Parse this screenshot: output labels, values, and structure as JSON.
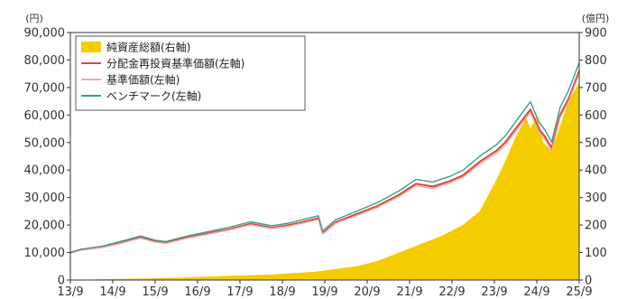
{
  "chart_data": {
    "type": "area",
    "left_axis": {
      "unit": "(円)",
      "min": 0,
      "max": 90000,
      "step": 10000,
      "ticks": [
        "0",
        "10,000",
        "20,000",
        "30,000",
        "40,000",
        "50,000",
        "60,000",
        "70,000",
        "80,000",
        "90,000"
      ]
    },
    "right_axis": {
      "unit": "(億円)",
      "min": 0,
      "max": 900,
      "step": 100,
      "ticks": [
        "0",
        "100",
        "200",
        "300",
        "400",
        "500",
        "600",
        "700",
        "800",
        "900"
      ]
    },
    "x_ticks": [
      "13/9",
      "14/9",
      "15/9",
      "16/9",
      "17/9",
      "18/9",
      "19/9",
      "20/9",
      "21/9",
      "22/9",
      "23/9",
      "24/9",
      "25/9"
    ],
    "x_range": [
      2013.75,
      2025.75
    ],
    "grid": false,
    "legend_position": "top-left",
    "series": [
      {
        "name": "純資産総額(右軸)",
        "axis": "right",
        "kind": "area",
        "color": "#f5cc00",
        "x": [
          2013.75,
          2014.5,
          2015.5,
          2016.5,
          2017.5,
          2018.5,
          2019.5,
          2020.5,
          2021.0,
          2021.5,
          2022.0,
          2022.5,
          2023.0,
          2023.4,
          2023.75,
          2024.0,
          2024.25,
          2024.5,
          2024.6,
          2024.75,
          2024.9,
          2025.1,
          2025.3,
          2025.5,
          2025.75
        ],
        "y": [
          0,
          3,
          6,
          10,
          15,
          20,
          30,
          50,
          70,
          100,
          130,
          160,
          200,
          250,
          350,
          430,
          520,
          590,
          550,
          600,
          500,
          470,
          560,
          650,
          720
        ]
      },
      {
        "name": "分配金再投資基準価額(左軸)",
        "axis": "left",
        "kind": "line",
        "color": "#d9483b",
        "x": [
          2013.75,
          2014.0,
          2014.5,
          2014.9,
          2015.4,
          2015.75,
          2016.0,
          2016.5,
          2017.0,
          2017.5,
          2018.0,
          2018.5,
          2018.9,
          2019.2,
          2019.6,
          2019.7,
          2020.0,
          2020.5,
          2021.0,
          2021.5,
          2021.9,
          2022.3,
          2022.7,
          2023.0,
          2023.4,
          2023.8,
          2024.0,
          2024.3,
          2024.5,
          2024.6,
          2024.8,
          2024.95,
          2025.1,
          2025.3,
          2025.5,
          2025.75
        ],
        "y": [
          10000,
          11000,
          12000,
          13500,
          15500,
          14000,
          13500,
          15500,
          17000,
          18500,
          20500,
          19000,
          20000,
          21000,
          22500,
          17000,
          21000,
          24000,
          27000,
          31000,
          35000,
          34000,
          36000,
          38000,
          43000,
          47000,
          50000,
          56000,
          60000,
          62000,
          55000,
          52000,
          48000,
          60000,
          66000,
          76000
        ]
      },
      {
        "name": "基準価額(左軸)",
        "axis": "left",
        "kind": "line",
        "color": "#f2a7a7",
        "x": [
          2013.75,
          2014.0,
          2014.5,
          2014.9,
          2015.4,
          2015.75,
          2016.0,
          2016.5,
          2017.0,
          2017.5,
          2018.0,
          2018.5,
          2018.9,
          2019.2,
          2019.6,
          2019.7,
          2020.0,
          2020.5,
          2021.0,
          2021.5,
          2021.9,
          2022.3,
          2022.7,
          2023.0,
          2023.4,
          2023.8,
          2024.0,
          2024.3,
          2024.5,
          2024.6,
          2024.8,
          2024.95,
          2025.1,
          2025.3,
          2025.5,
          2025.75
        ],
        "y": [
          10000,
          10800,
          11800,
          13200,
          15200,
          13800,
          13300,
          15200,
          16700,
          18200,
          20100,
          18700,
          19600,
          20600,
          22000,
          16700,
          20600,
          23500,
          26500,
          30400,
          34300,
          33300,
          35300,
          37300,
          42200,
          46100,
          49000,
          55000,
          59000,
          61000,
          54000,
          51000,
          47000,
          59000,
          65000,
          75000
        ]
      },
      {
        "name": "ベンチマーク(左軸)",
        "axis": "left",
        "kind": "line",
        "color": "#3a9e8c",
        "x": [
          2013.75,
          2014.0,
          2014.5,
          2014.9,
          2015.4,
          2015.75,
          2016.0,
          2016.5,
          2017.0,
          2017.5,
          2018.0,
          2018.5,
          2018.9,
          2019.2,
          2019.6,
          2019.7,
          2020.0,
          2020.5,
          2021.0,
          2021.5,
          2021.9,
          2022.3,
          2022.7,
          2023.0,
          2023.4,
          2023.8,
          2024.0,
          2024.3,
          2024.5,
          2024.6,
          2024.8,
          2024.95,
          2025.1,
          2025.3,
          2025.5,
          2025.75
        ],
        "y": [
          10000,
          11200,
          12300,
          13900,
          16000,
          14500,
          14000,
          16000,
          17600,
          19200,
          21200,
          19700,
          20700,
          21800,
          23400,
          17800,
          21900,
          25000,
          28200,
          32400,
          36600,
          35600,
          37700,
          39800,
          45000,
          49200,
          52300,
          58600,
          62800,
          64800,
          57500,
          54400,
          50200,
          62700,
          69000,
          79000
        ]
      }
    ]
  }
}
